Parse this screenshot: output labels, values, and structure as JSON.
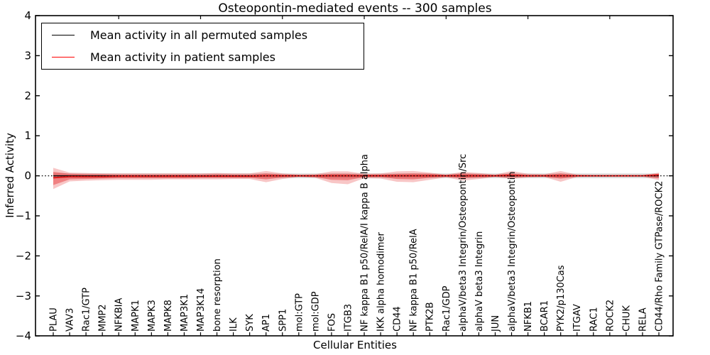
{
  "figure": {
    "title": "Osteopontin-mediated events -- 300 samples",
    "xlabel": "Cellular Entities",
    "ylabel": "Inferred Activity"
  },
  "legend": {
    "items": [
      {
        "label": "Mean activity in all permuted samples",
        "color": "#000000"
      },
      {
        "label": "Mean activity in patient samples",
        "color": "#ff0000"
      }
    ]
  },
  "chart_data": {
    "type": "line",
    "title": "Osteopontin-mediated events -- 300 samples",
    "xlabel": "Cellular Entities",
    "ylabel": "Inferred Activity",
    "ylim": [
      -4,
      4
    ],
    "ytick_values": [
      4,
      3,
      2,
      1,
      0,
      -1,
      -2,
      -3,
      -4
    ],
    "ytick_labels": [
      "4",
      "3",
      "2",
      "1",
      "0",
      "−1",
      "−2",
      "−3",
      "−4"
    ],
    "grid": false,
    "legend_position": "upper left",
    "top_ticks_every": 5,
    "categories": [
      "PLAU",
      "VAV3",
      "Rac1/GTP",
      "MMP2",
      "NFKBIA",
      "MAPK1",
      "MAPK3",
      "MAPK8",
      "MAP3K1",
      "MAP3K14",
      "bone resorption",
      "ILK",
      "SYK",
      "AP1",
      "SPP1",
      "mol:GTP",
      "mol:GDP",
      "FOS",
      "ITGB3",
      "NF kappa B1 p50/RelA/I kappa B alpha",
      "IKK alpha homodimer",
      "CD44",
      "NF kappa B1 p50/RelA",
      "PTK2B",
      "Rac1/GDP",
      "alphaV/beta3 Integrin/Osteopontin/Src",
      "alphaV beta3 Integrin",
      "JUN",
      "alphaV/beta3 Integrin/Osteopontin",
      "NFKB1",
      "BCAR1",
      "PYK2/p130Cas",
      "ITGAV",
      "RAC1",
      "ROCK2",
      "CHUK",
      "RELA",
      "CD44/Rho Family GTPase/ROCK2"
    ],
    "zero_line": {
      "y": 0,
      "color": "#000000",
      "style": "dotted"
    },
    "series": [
      {
        "name": "Mean activity in all permuted samples",
        "slug": "permuted-mean-line",
        "color": "#000000",
        "width": 1.3,
        "values": [
          0,
          0,
          0,
          0,
          0,
          0,
          0,
          0,
          0,
          0,
          0,
          0,
          0,
          0,
          0,
          0,
          0,
          0,
          0,
          0,
          0,
          0,
          0,
          0,
          0,
          0,
          0,
          0,
          0,
          0,
          0,
          0,
          0,
          0,
          0,
          0,
          0,
          0
        ]
      },
      {
        "name": "Mean activity in patient samples",
        "slug": "patient-mean-line",
        "color": "#e01a1a",
        "width": 2,
        "values": [
          -0.05,
          -0.02,
          -0.02,
          -0.02,
          -0.01,
          -0.01,
          -0.01,
          -0.01,
          -0.01,
          -0.01,
          -0.01,
          -0.01,
          -0.01,
          0,
          0,
          0,
          0,
          0,
          0,
          0,
          0,
          0,
          0,
          0,
          0,
          0,
          0,
          0,
          0.01,
          0,
          0,
          0,
          0,
          0,
          0,
          0,
          0,
          0.02
        ]
      }
    ],
    "bands": [
      {
        "name": "permuted-std",
        "color": "#999999",
        "opacity": 0.35,
        "upper": [
          0.06,
          0.06,
          0.06,
          0.06,
          0.06,
          0.06,
          0.06,
          0.06,
          0.06,
          0.06,
          0.06,
          0.06,
          0.06,
          0.06,
          0.06,
          0.06,
          0.06,
          0.06,
          0.06,
          0.06,
          0.06,
          0.06,
          0.06,
          0.06,
          0.06,
          0.06,
          0.06,
          0.06,
          0.06,
          0.06,
          0.06,
          0.06,
          0.06,
          0.06,
          0.06,
          0.06,
          0.06,
          0.06
        ],
        "lower": [
          -0.06,
          -0.06,
          -0.06,
          -0.06,
          -0.06,
          -0.06,
          -0.06,
          -0.06,
          -0.06,
          -0.06,
          -0.06,
          -0.06,
          -0.06,
          -0.06,
          -0.06,
          -0.06,
          -0.06,
          -0.06,
          -0.06,
          -0.06,
          -0.06,
          -0.06,
          -0.06,
          -0.06,
          -0.06,
          -0.06,
          -0.06,
          -0.06,
          -0.06,
          -0.06,
          -0.06,
          -0.06,
          -0.06,
          -0.06,
          -0.06,
          -0.06,
          -0.06,
          -0.06
        ]
      },
      {
        "name": "patient-outer",
        "color": "#e41a1c",
        "opacity": 0.25,
        "upper": [
          0.2,
          0.08,
          0.07,
          0.06,
          0.06,
          0.06,
          0.06,
          0.06,
          0.06,
          0.06,
          0.07,
          0.06,
          0.06,
          0.12,
          0.06,
          0.03,
          0.04,
          0.11,
          0.11,
          0.05,
          0.06,
          0.11,
          0.12,
          0.08,
          0.03,
          0.1,
          0.07,
          0.03,
          0.12,
          0.05,
          0.04,
          0.12,
          0.03,
          0.02,
          0.02,
          0.02,
          0.02,
          0.08
        ],
        "lower": [
          -0.33,
          -0.14,
          -0.12,
          -0.11,
          -0.1,
          -0.1,
          -0.1,
          -0.09,
          -0.09,
          -0.09,
          -0.09,
          -0.08,
          -0.08,
          -0.16,
          -0.08,
          -0.03,
          -0.05,
          -0.18,
          -0.21,
          -0.06,
          -0.07,
          -0.15,
          -0.16,
          -0.1,
          -0.04,
          -0.12,
          -0.08,
          -0.03,
          -0.08,
          -0.04,
          -0.03,
          -0.15,
          -0.03,
          -0.02,
          -0.02,
          -0.02,
          -0.02,
          -0.11
        ]
      },
      {
        "name": "patient-inner",
        "color": "#e41a1c",
        "opacity": 0.4,
        "upper": [
          0.1,
          0.05,
          0.04,
          0.04,
          0.03,
          0.03,
          0.03,
          0.03,
          0.03,
          0.03,
          0.04,
          0.03,
          0.03,
          0.06,
          0.03,
          0.02,
          0.02,
          0.05,
          0.05,
          0.03,
          0.03,
          0.05,
          0.06,
          0.05,
          0.02,
          0.06,
          0.04,
          0.02,
          0.06,
          0.02,
          0.02,
          0.06,
          0.015,
          0.01,
          0.01,
          0.01,
          0.01,
          0.05
        ],
        "lower": [
          -0.23,
          -0.09,
          -0.08,
          -0.07,
          -0.06,
          -0.06,
          -0.06,
          -0.06,
          -0.06,
          -0.05,
          -0.05,
          -0.05,
          -0.05,
          -0.09,
          -0.04,
          -0.02,
          -0.03,
          -0.1,
          -0.11,
          -0.03,
          -0.03,
          -0.08,
          -0.09,
          -0.05,
          -0.02,
          -0.06,
          -0.04,
          -0.02,
          -0.04,
          -0.02,
          -0.02,
          -0.07,
          -0.015,
          -0.01,
          -0.01,
          -0.01,
          -0.01,
          -0.06
        ]
      }
    ]
  }
}
